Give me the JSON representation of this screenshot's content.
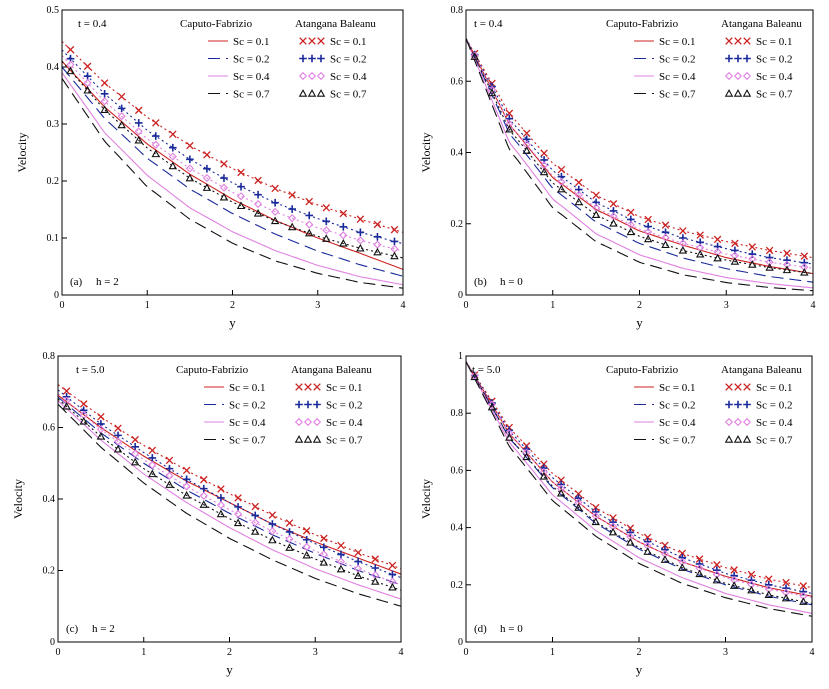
{
  "colors": {
    "sc01": "#cc2222",
    "sc02": "#1a2a9a",
    "sc04": "#e080e0",
    "sc07": "#111111",
    "frame": "#000000"
  },
  "legend": {
    "left_header": "Caputo-Fabrizio",
    "right_header": "Atangana Baleanu",
    "entries": [
      "Sc = 0.1",
      "Sc = 0.2",
      "Sc = 0.4",
      "Sc = 0.7"
    ],
    "markers": [
      "cross",
      "plus",
      "diamond",
      "triangle"
    ]
  },
  "chart_data": [
    {
      "type": "line",
      "panel_label": "(a)",
      "h_label": "h = 2",
      "t_label": "t = 0.4",
      "xlabel": "y",
      "ylabel": "Velocity",
      "xlim": [
        0,
        4
      ],
      "ylim": [
        0,
        0.5
      ],
      "xticks": [
        0,
        1,
        2,
        3,
        4
      ],
      "xtick_labels": [
        "0",
        "1",
        "2",
        "3",
        "4"
      ],
      "yticks": [
        0,
        0.1,
        0.2,
        0.3,
        0.4,
        0.5
      ],
      "ytick_labels": [
        "0",
        "0.1",
        "0.2",
        "0.3",
        "0.4",
        "0.5"
      ],
      "x": [
        0,
        0.5,
        1,
        1.5,
        2,
        2.5,
        3,
        3.5,
        4
      ],
      "caputo_fabrizio": [
        {
          "name": "Sc = 0.1",
          "values": [
            0.41,
            0.33,
            0.265,
            0.212,
            0.168,
            0.131,
            0.1,
            0.073,
            0.045
          ]
        },
        {
          "name": "Sc = 0.2",
          "values": [
            0.4,
            0.31,
            0.24,
            0.186,
            0.143,
            0.107,
            0.077,
            0.053,
            0.033
          ]
        },
        {
          "name": "Sc = 0.4",
          "values": [
            0.39,
            0.285,
            0.21,
            0.153,
            0.111,
            0.078,
            0.052,
            0.032,
            0.018
          ]
        },
        {
          "name": "Sc = 0.7",
          "values": [
            0.38,
            0.27,
            0.19,
            0.133,
            0.091,
            0.06,
            0.038,
            0.022,
            0.012
          ]
        }
      ],
      "atangana_baleanu": [
        {
          "name": "Sc = 0.1",
          "values": [
            0.445,
            0.372,
            0.312,
            0.262,
            0.222,
            0.187,
            0.158,
            0.133,
            0.11
          ]
        },
        {
          "name": "Sc = 0.2",
          "values": [
            0.43,
            0.353,
            0.289,
            0.238,
            0.197,
            0.162,
            0.134,
            0.11,
            0.09
          ]
        },
        {
          "name": "Sc = 0.4",
          "values": [
            0.42,
            0.34,
            0.274,
            0.222,
            0.18,
            0.146,
            0.118,
            0.096,
            0.077
          ]
        },
        {
          "name": "Sc = 0.7",
          "values": [
            0.41,
            0.325,
            0.258,
            0.205,
            0.163,
            0.13,
            0.103,
            0.082,
            0.065
          ]
        }
      ]
    },
    {
      "type": "line",
      "panel_label": "(b)",
      "h_label": "h = 0",
      "t_label": "t = 0.4",
      "xlabel": "y",
      "ylabel": "Velocity",
      "xlim": [
        0,
        4
      ],
      "ylim": [
        0,
        0.8
      ],
      "xticks": [
        0,
        1,
        2,
        3,
        4
      ],
      "xtick_labels": [
        "0",
        "1",
        "2",
        "3",
        "4"
      ],
      "yticks": [
        0,
        0.2,
        0.4,
        0.6,
        0.8
      ],
      "ytick_labels": [
        "0",
        "0.2",
        "0.4",
        "0.6",
        "0.8"
      ],
      "x": [
        0,
        0.5,
        1,
        1.5,
        2,
        2.5,
        3,
        3.5,
        4
      ],
      "caputo_fabrizio": [
        {
          "name": "Sc = 0.1",
          "values": [
            0.72,
            0.48,
            0.33,
            0.24,
            0.18,
            0.14,
            0.105,
            0.08,
            0.06
          ]
        },
        {
          "name": "Sc = 0.2",
          "values": [
            0.72,
            0.455,
            0.3,
            0.205,
            0.145,
            0.104,
            0.074,
            0.052,
            0.036
          ]
        },
        {
          "name": "Sc = 0.4",
          "values": [
            0.72,
            0.43,
            0.27,
            0.172,
            0.113,
            0.075,
            0.049,
            0.032,
            0.02
          ]
        },
        {
          "name": "Sc = 0.7",
          "values": [
            0.72,
            0.41,
            0.245,
            0.15,
            0.092,
            0.057,
            0.035,
            0.021,
            0.012
          ]
        }
      ],
      "atangana_baleanu": [
        {
          "name": "Sc = 0.1",
          "values": [
            0.72,
            0.51,
            0.37,
            0.28,
            0.22,
            0.18,
            0.15,
            0.125,
            0.105
          ]
        },
        {
          "name": "Sc = 0.2",
          "values": [
            0.72,
            0.495,
            0.35,
            0.26,
            0.2,
            0.16,
            0.13,
            0.105,
            0.087
          ]
        },
        {
          "name": "Sc = 0.4",
          "values": [
            0.72,
            0.48,
            0.335,
            0.245,
            0.185,
            0.145,
            0.115,
            0.092,
            0.075
          ]
        },
        {
          "name": "Sc = 0.7",
          "values": [
            0.72,
            0.465,
            0.315,
            0.225,
            0.165,
            0.125,
            0.098,
            0.077,
            0.06
          ]
        }
      ]
    },
    {
      "type": "line",
      "panel_label": "(c)",
      "h_label": "h = 2",
      "t_label": "t = 5.0",
      "xlabel": "y",
      "ylabel": "Velocity",
      "xlim": [
        0,
        4
      ],
      "ylim": [
        0,
        0.8
      ],
      "xticks": [
        0,
        1,
        2,
        3,
        4
      ],
      "xtick_labels": [
        "0",
        "1",
        "2",
        "3",
        "4"
      ],
      "yticks": [
        0,
        0.2,
        0.4,
        0.6,
        0.8
      ],
      "ytick_labels": [
        "0",
        "0.2",
        "0.4",
        "0.6",
        "0.8"
      ],
      "x": [
        0,
        0.5,
        1,
        1.5,
        2,
        2.5,
        3,
        3.5,
        4
      ],
      "caputo_fabrizio": [
        {
          "name": "Sc = 0.1",
          "values": [
            0.69,
            0.6,
            0.52,
            0.45,
            0.39,
            0.33,
            0.28,
            0.235,
            0.19
          ]
        },
        {
          "name": "Sc = 0.2",
          "values": [
            0.685,
            0.585,
            0.5,
            0.425,
            0.36,
            0.3,
            0.248,
            0.2,
            0.16
          ]
        },
        {
          "name": "Sc = 0.4",
          "values": [
            0.675,
            0.565,
            0.47,
            0.39,
            0.32,
            0.258,
            0.205,
            0.16,
            0.12
          ]
        },
        {
          "name": "Sc = 0.7",
          "values": [
            0.665,
            0.545,
            0.445,
            0.36,
            0.29,
            0.23,
            0.178,
            0.135,
            0.1
          ]
        }
      ],
      "atangana_baleanu": [
        {
          "name": "Sc = 0.1",
          "values": [
            0.72,
            0.63,
            0.55,
            0.48,
            0.415,
            0.355,
            0.3,
            0.25,
            0.205
          ]
        },
        {
          "name": "Sc = 0.2",
          "values": [
            0.705,
            0.61,
            0.53,
            0.455,
            0.39,
            0.33,
            0.275,
            0.225,
            0.18
          ]
        },
        {
          "name": "Sc = 0.4",
          "values": [
            0.695,
            0.595,
            0.51,
            0.435,
            0.37,
            0.31,
            0.255,
            0.205,
            0.16
          ]
        },
        {
          "name": "Sc = 0.7",
          "values": [
            0.68,
            0.575,
            0.485,
            0.41,
            0.345,
            0.285,
            0.232,
            0.185,
            0.145
          ]
        }
      ]
    },
    {
      "type": "line",
      "panel_label": "(d)",
      "h_label": "h = 0",
      "t_label": "t = 5.0",
      "xlabel": "y",
      "ylabel": "Velocity",
      "xlim": [
        0,
        4
      ],
      "ylim": [
        0,
        1
      ],
      "xticks": [
        0,
        1,
        2,
        3,
        4
      ],
      "xtick_labels": [
        "0",
        "1",
        "2",
        "3",
        "4"
      ],
      "yticks": [
        0,
        0.2,
        0.4,
        0.6,
        0.8,
        1
      ],
      "ytick_labels": [
        "0",
        "0.2",
        "0.4",
        "0.6",
        "0.8",
        "1"
      ],
      "x": [
        0,
        0.5,
        1,
        1.5,
        2,
        2.5,
        3,
        3.5,
        4
      ],
      "caputo_fabrizio": [
        {
          "name": "Sc = 0.1",
          "values": [
            0.98,
            0.73,
            0.56,
            0.44,
            0.35,
            0.28,
            0.23,
            0.19,
            0.16
          ]
        },
        {
          "name": "Sc = 0.2",
          "values": [
            0.98,
            0.715,
            0.54,
            0.415,
            0.325,
            0.255,
            0.2,
            0.16,
            0.13
          ]
        },
        {
          "name": "Sc = 0.4",
          "values": [
            0.98,
            0.7,
            0.515,
            0.39,
            0.295,
            0.225,
            0.17,
            0.13,
            0.1
          ]
        },
        {
          "name": "Sc = 0.7",
          "values": [
            0.98,
            0.685,
            0.495,
            0.37,
            0.275,
            0.205,
            0.155,
            0.117,
            0.09
          ]
        }
      ],
      "atangana_baleanu": [
        {
          "name": "Sc = 0.1",
          "values": [
            0.98,
            0.75,
            0.59,
            0.47,
            0.38,
            0.31,
            0.26,
            0.22,
            0.19
          ]
        },
        {
          "name": "Sc = 0.2",
          "values": [
            0.98,
            0.74,
            0.575,
            0.455,
            0.365,
            0.295,
            0.24,
            0.2,
            0.17
          ]
        },
        {
          "name": "Sc = 0.4",
          "values": [
            0.98,
            0.73,
            0.56,
            0.44,
            0.35,
            0.28,
            0.225,
            0.185,
            0.155
          ]
        },
        {
          "name": "Sc = 0.7",
          "values": [
            0.98,
            0.715,
            0.545,
            0.42,
            0.33,
            0.26,
            0.205,
            0.165,
            0.135
          ]
        }
      ]
    }
  ]
}
